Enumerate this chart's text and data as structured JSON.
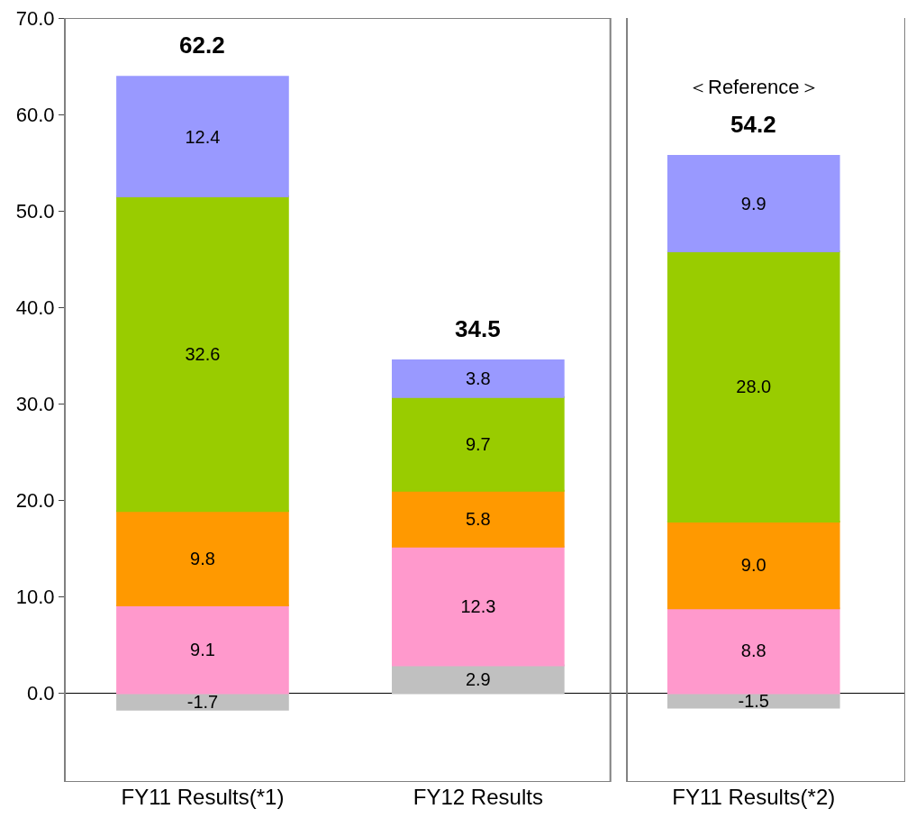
{
  "chart_data": {
    "type": "bar",
    "stacked": true,
    "categories": [
      "FY11 Results(*1)",
      "FY12 Results",
      "FY11 Results(*2)"
    ],
    "series": [
      {
        "color": "#c0c0c0",
        "values": [
          -1.7,
          2.9,
          -1.5
        ],
        "value_labels": [
          "-1.7",
          "2.9",
          "-1.5"
        ]
      },
      {
        "color": "#ff99cc",
        "values": [
          9.1,
          12.3,
          8.8
        ],
        "value_labels": [
          "9.1",
          "12.3",
          "8.8"
        ]
      },
      {
        "color": "#ff9900",
        "values": [
          9.8,
          5.8,
          9.0
        ],
        "value_labels": [
          "9.8",
          "5.8",
          "9.0"
        ]
      },
      {
        "color": "#99cc00",
        "values": [
          32.6,
          9.7,
          28.0
        ],
        "value_labels": [
          "32.6",
          "9.7",
          "28.0"
        ]
      },
      {
        "color": "#9999ff",
        "values": [
          12.4,
          3.8,
          9.9
        ],
        "value_labels": [
          "12.4",
          "3.8",
          "9.9"
        ]
      }
    ],
    "totals": [
      "62.2",
      "34.5",
      "54.2"
    ],
    "annotations": [
      "＜Reference＞"
    ],
    "ylim": [
      -9.2,
      70
    ],
    "yticks": [
      {
        "value": 0,
        "label": "0.0"
      },
      {
        "value": 10,
        "label": "10.0"
      },
      {
        "value": 20,
        "label": "20.0"
      },
      {
        "value": 30,
        "label": "30.0"
      },
      {
        "value": 40,
        "label": "40.0"
      },
      {
        "value": 50,
        "label": "50.0"
      },
      {
        "value": 60,
        "label": "60.0"
      },
      {
        "value": 70,
        "label": "70.0"
      }
    ]
  }
}
